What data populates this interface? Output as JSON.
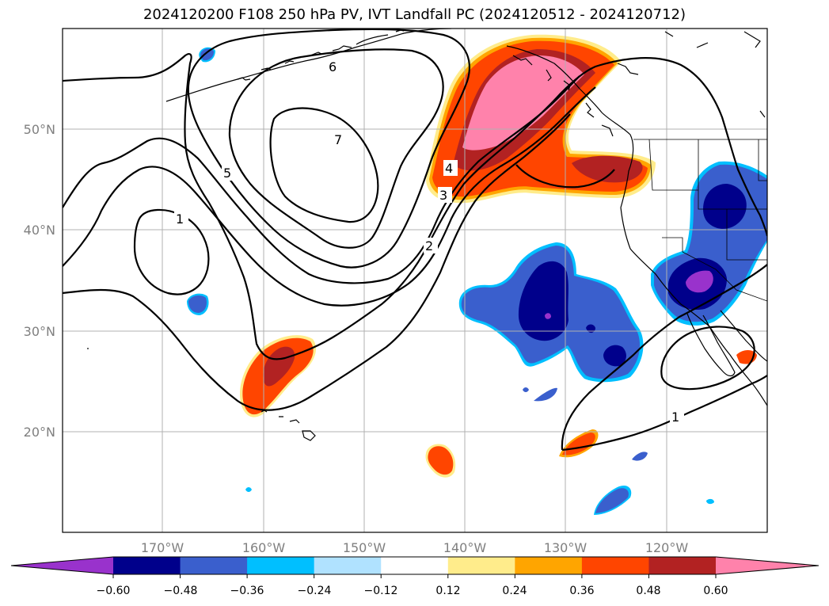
{
  "title": "2024120200 F108 250 hPa PV, IVT Landfall PC (2024120512 - 2024120712)",
  "longitude_labels": [
    "170°W",
    "160°W",
    "150°W",
    "140°W",
    "130°W",
    "120°W"
  ],
  "latitude_labels": [
    "50°N",
    "40°N",
    "30°N",
    "20°N"
  ],
  "contour_labels": [
    "6",
    "7",
    "5",
    "1",
    "4",
    "3",
    "2",
    "1"
  ],
  "colorbar": {
    "ticks": [
      "−0.60",
      "−0.48",
      "−0.36",
      "−0.24",
      "−0.12",
      "0.12",
      "0.24",
      "0.36",
      "0.48",
      "0.60"
    ],
    "colors": [
      "#9932cc",
      "#00008b",
      "#3a5fcd",
      "#00bfff",
      "#b0e2ff",
      "#ffffff",
      "#ffec8b",
      "#ffa500",
      "#ff4500",
      "#b22222",
      "#ff82ab"
    ]
  },
  "colors": {
    "contour": "#000000",
    "grid": "#b0b0b0",
    "coast": "#000000",
    "tick_text": "#7f7f7f"
  }
}
